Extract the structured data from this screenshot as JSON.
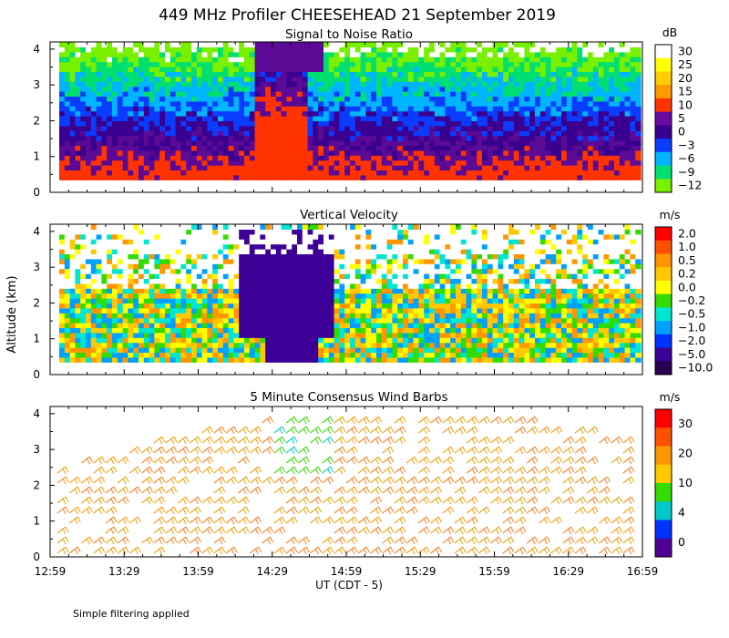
{
  "title": "449 MHz Profiler CHEESEHEAD 21 September 2019",
  "shared_ylabel": "Altitude (km)",
  "xlabel": "UT  (CDT - 5)",
  "x_ticks": [
    "12:59",
    "13:29",
    "13:59",
    "14:29",
    "14:59",
    "15:29",
    "15:59",
    "16:29",
    "16:59"
  ],
  "y_ticks": [
    "0",
    "1",
    "2",
    "3",
    "4"
  ],
  "footnote": "Simple filtering applied",
  "chart_data": [
    {
      "type": "heatmap",
      "title": "Signal to Noise Ratio",
      "colorbar_unit": "dB",
      "x_range": [
        "12:59",
        "16:59"
      ],
      "ylim": [
        0,
        4
      ],
      "colorbar_labels": [
        "30",
        "25",
        "20",
        "15",
        "10",
        "5",
        "0",
        "−3",
        "−6",
        "−9",
        "−12"
      ],
      "colorbar_colors": [
        "#ffffff",
        "#ffff00",
        "#ffcc00",
        "#ff9900",
        "#ff3300",
        "#6a0aa0",
        "#3a0090",
        "#0a3cff",
        "#00b4ff",
        "#00e070",
        "#78f000"
      ],
      "profile_colors_by_altitude": [
        "#ff3300",
        "#5b0a96",
        "#3a0090",
        "#0a3cff",
        "#00b4ff",
        "#00e070",
        "#78f000",
        "#ffffff"
      ],
      "description_rows": [
        {
          "altitude_km": 0.4,
          "snr_db": 12
        },
        {
          "altitude_km": 1.0,
          "snr_db": 3
        },
        {
          "altitude_km": 1.6,
          "snr_db": -1
        },
        {
          "altitude_km": 2.2,
          "snr_db": -4
        },
        {
          "altitude_km": 2.8,
          "snr_db": -7
        },
        {
          "altitude_km": 3.4,
          "snr_db": -10
        },
        {
          "altitude_km": 3.9,
          "snr_db": -14
        }
      ]
    },
    {
      "type": "heatmap",
      "title": "Vertical Velocity",
      "colorbar_unit": "m/s",
      "x_range": [
        "12:59",
        "16:59"
      ],
      "ylim": [
        0,
        4
      ],
      "colorbar_labels": [
        "2.0",
        "1.0",
        "0.5",
        "0.2",
        "0.0",
        "−0.2",
        "−0.5",
        "−1.0",
        "−2.0",
        "−5.0",
        "−10.0"
      ],
      "colorbar_colors": [
        "#ff0000",
        "#ff5000",
        "#ff9600",
        "#ffc800",
        "#ffff00",
        "#32dc00",
        "#00e6d2",
        "#00a0ff",
        "#0032ff",
        "#3c0096",
        "#2a0050"
      ],
      "dominant_values": [
        0.0,
        0.2,
        -0.2,
        -5.0
      ]
    },
    {
      "type": "barbs",
      "title": "5 Minute Consensus Wind Barbs",
      "colorbar_unit": "m/s",
      "x_range": [
        "12:59",
        "16:59"
      ],
      "ylim": [
        0,
        4
      ],
      "colorbar_labels": [
        "30",
        "20",
        "10",
        "4",
        "0"
      ],
      "colorbar_colors": [
        "#ff0000",
        "#ff5000",
        "#ff9600",
        "#ffc800",
        "#32dc00",
        "#00c8c8",
        "#0032ff",
        "#500096"
      ],
      "dominant_speed_ms": 20
    }
  ]
}
